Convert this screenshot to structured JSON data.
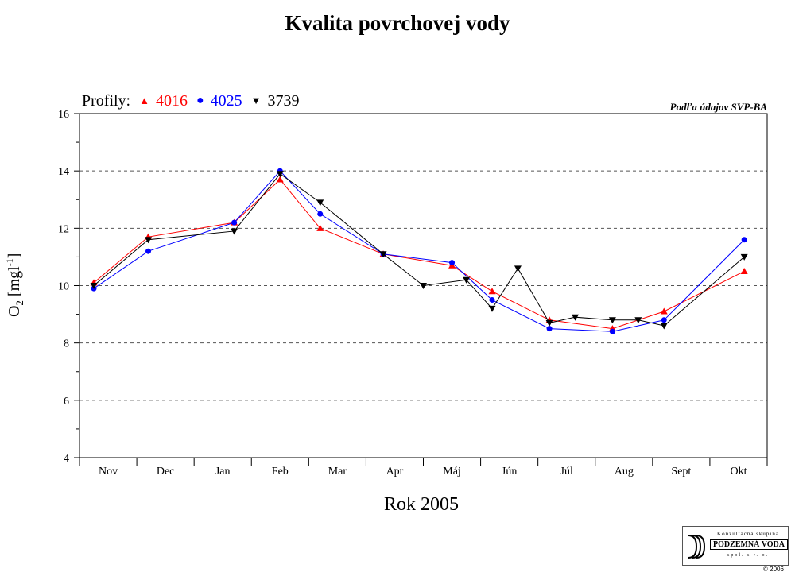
{
  "chart_data": {
    "type": "line",
    "title": "Kvalita povrchovej vody",
    "xlabel": "Rok 2005",
    "ylabel": "O2 [mgl-1]",
    "ylabel_main": "O",
    "ylabel_sub": "2",
    "ylabel_unit": "[mgl",
    "ylabel_sup": "-1",
    "ylabel_close": "]",
    "source_note": "Podľa údajov SVP-BA",
    "legend_prefix": "Profily:",
    "ylim": [
      4,
      16
    ],
    "yticks": [
      4,
      6,
      8,
      10,
      12,
      14,
      16
    ],
    "xlim": [
      0,
      12
    ],
    "categories": [
      "Nov",
      "Dec",
      "Jan",
      "Feb",
      "Mar",
      "Apr",
      "Máj",
      "Jún",
      "Júl",
      "Aug",
      "Sept",
      "Okt"
    ],
    "grid": true,
    "series": [
      {
        "name": "4016",
        "color": "#ff0000",
        "marker": "triangle-up",
        "x": [
          0.25,
          1.2,
          2.7,
          3.5,
          4.2,
          5.3,
          6.5,
          7.2,
          8.2,
          9.3,
          10.2,
          11.6
        ],
        "y": [
          10.1,
          11.7,
          12.2,
          13.7,
          12.0,
          11.1,
          10.7,
          9.8,
          8.8,
          8.5,
          9.1,
          10.5
        ]
      },
      {
        "name": "4025",
        "color": "#0000ff",
        "marker": "circle",
        "x": [
          0.25,
          1.2,
          2.7,
          3.5,
          4.2,
          5.3,
          6.5,
          7.2,
          8.2,
          9.3,
          10.2,
          11.6
        ],
        "y": [
          9.9,
          11.2,
          12.2,
          14.0,
          12.5,
          11.1,
          10.8,
          9.5,
          8.5,
          8.4,
          8.8,
          11.6
        ]
      },
      {
        "name": "3739",
        "color": "#000000",
        "marker": "triangle-down",
        "x": [
          0.25,
          1.2,
          2.7,
          3.5,
          4.2,
          5.3,
          6.0,
          6.75,
          7.2,
          7.65,
          8.2,
          8.65,
          9.3,
          9.75,
          10.2,
          11.6
        ],
        "y": [
          10.0,
          11.6,
          11.9,
          13.9,
          12.9,
          11.1,
          10.0,
          10.2,
          9.2,
          10.6,
          8.7,
          8.9,
          8.8,
          8.8,
          8.6,
          11.0
        ]
      }
    ]
  },
  "logo": {
    "line1": "Konzultačná skupina",
    "line2": "PODZEMNÁ VODA",
    "line3": "spol. s r. o."
  },
  "copyright": "© 2006"
}
